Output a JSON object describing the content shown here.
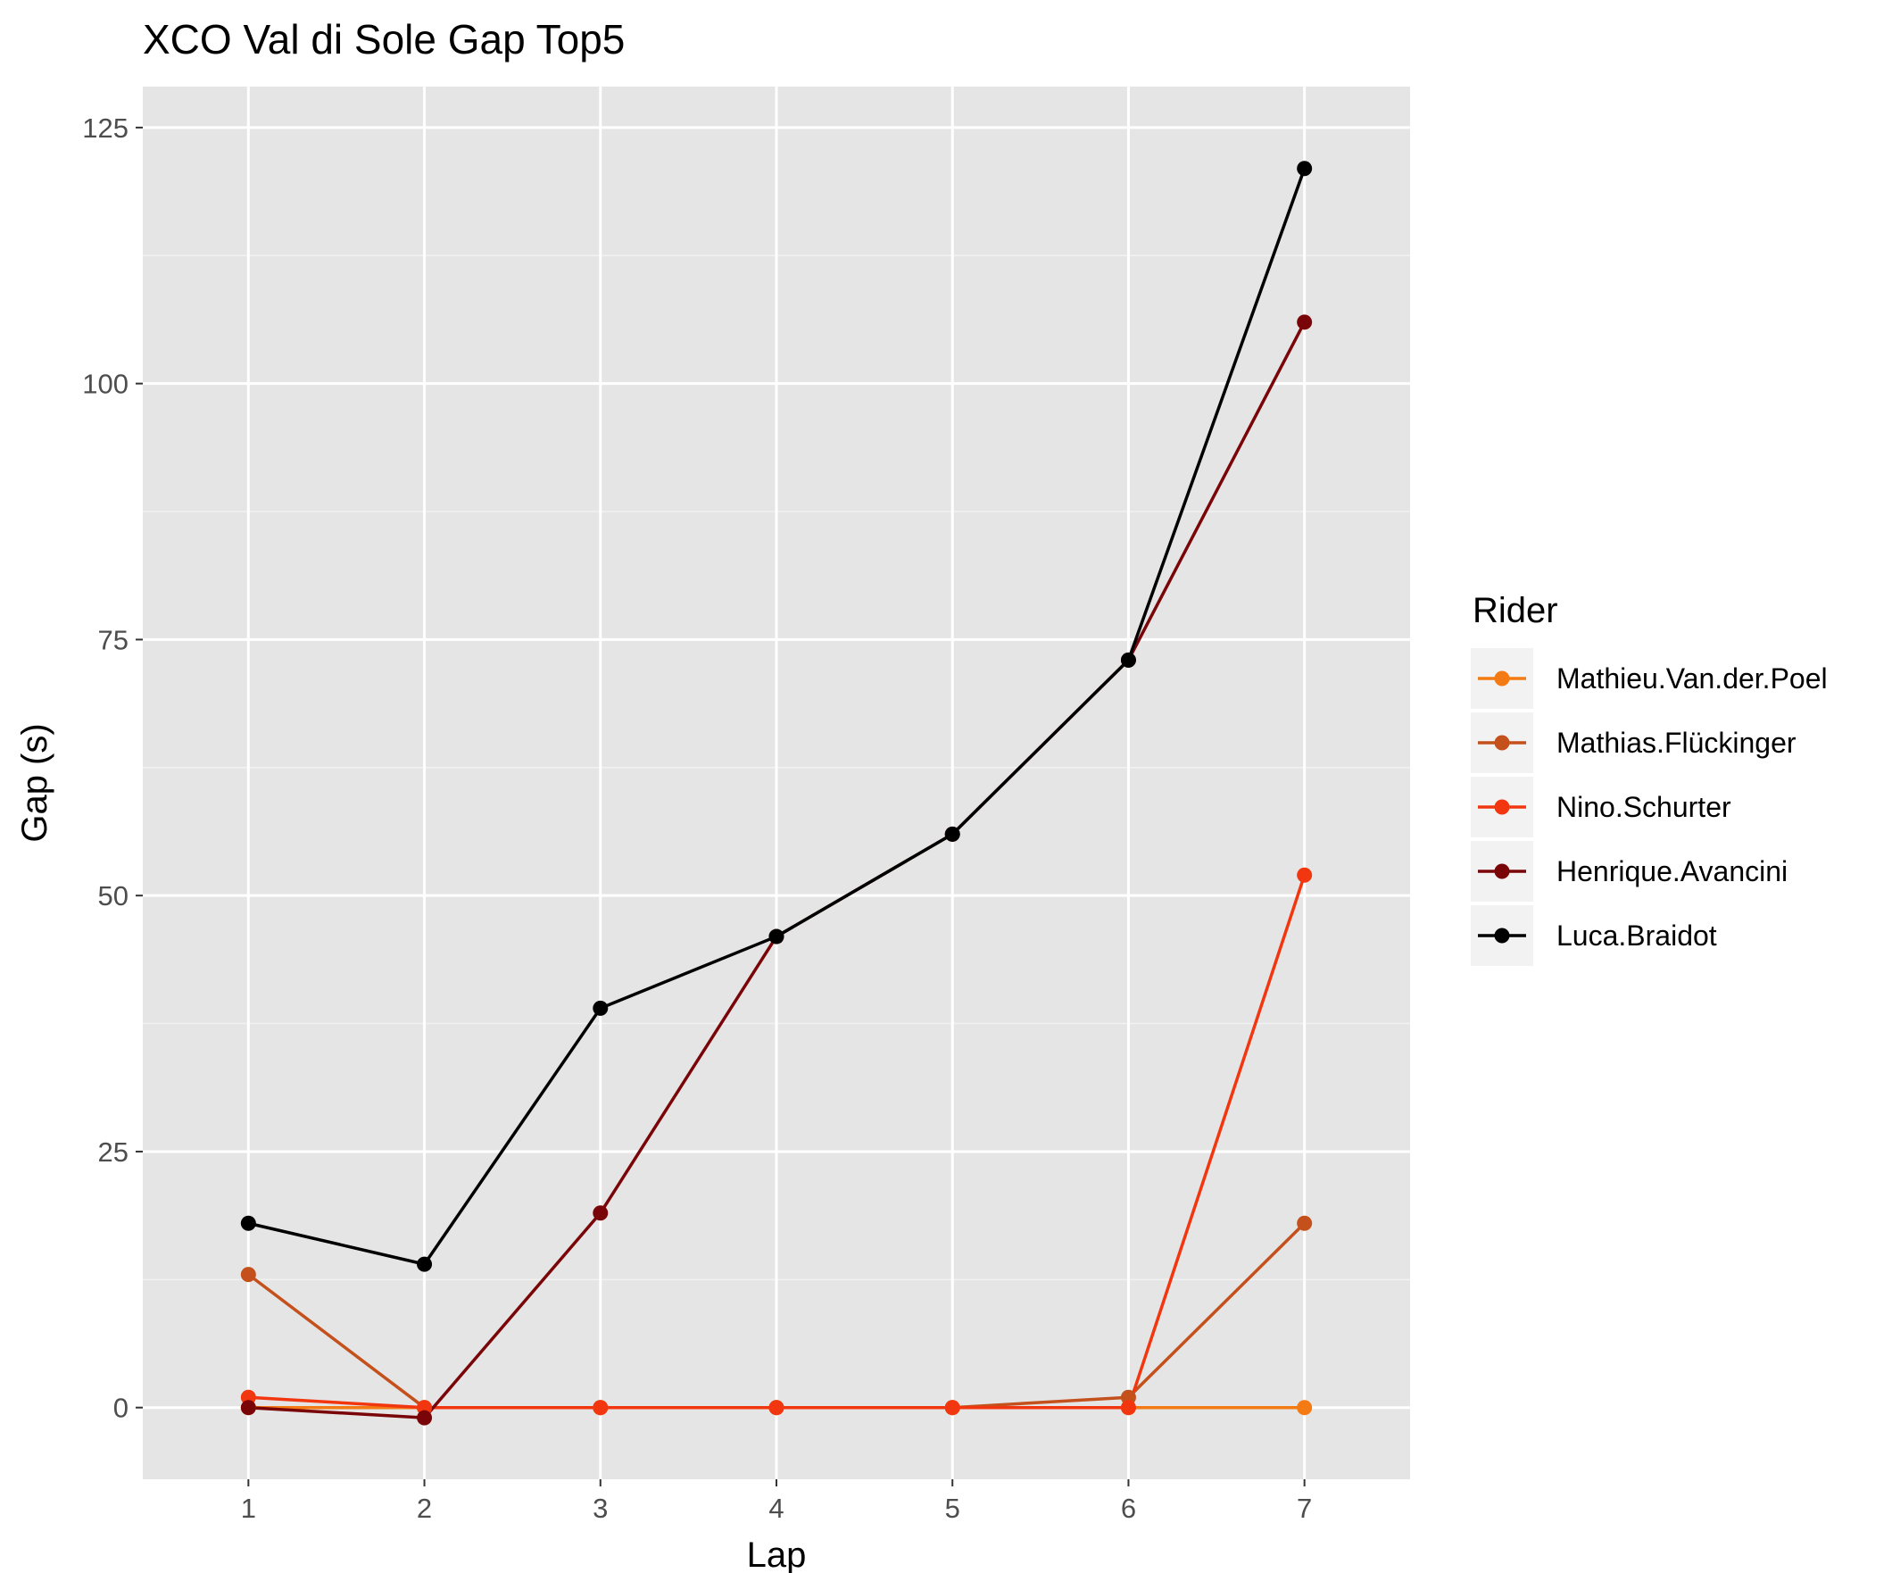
{
  "chart_data": {
    "type": "line",
    "title": "XCO Val di Sole Gap Top5",
    "xlabel": "Lap",
    "ylabel": "Gap (s)",
    "x": [
      1,
      2,
      3,
      4,
      5,
      6,
      7
    ],
    "xlim": [
      0.4,
      7.6
    ],
    "ylim": [
      -7,
      129
    ],
    "x_ticks": [
      "1",
      "2",
      "3",
      "4",
      "5",
      "6",
      "7"
    ],
    "y_ticks": [
      "0",
      "25",
      "50",
      "75",
      "100",
      "125"
    ],
    "grid": true,
    "legend": {
      "title": "Rider",
      "position": "right"
    },
    "panel_background": "#e5e5e5",
    "series": [
      {
        "name": "Mathieu.Van.der.Poel",
        "color": "#f47a14",
        "values": [
          0,
          0,
          0,
          0,
          0,
          0,
          0
        ]
      },
      {
        "name": "Mathias.Flückinger",
        "color": "#c4501c",
        "values": [
          13,
          0,
          0,
          0,
          0,
          1,
          18
        ]
      },
      {
        "name": "Nino.Schurter",
        "color": "#f2360f",
        "values": [
          1,
          0,
          0,
          0,
          0,
          0,
          52
        ]
      },
      {
        "name": "Henrique.Avancini",
        "color": "#7a0508",
        "values": [
          0,
          -1,
          19,
          46,
          56,
          73,
          106
        ]
      },
      {
        "name": "Luca.Braidot",
        "color": "#000000",
        "values": [
          18,
          14,
          39,
          46,
          56,
          73,
          121
        ]
      }
    ]
  }
}
